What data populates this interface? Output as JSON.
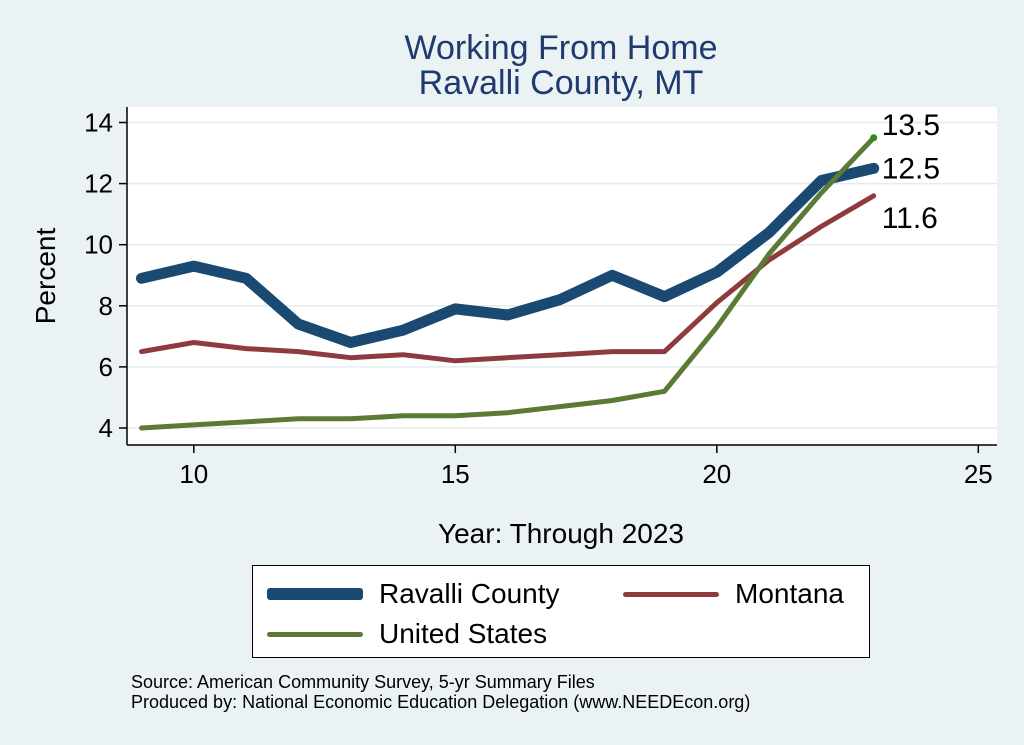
{
  "chart_data": {
    "type": "line",
    "title": "Working From Home",
    "subtitle": "Ravalli County, MT",
    "xlabel": "Year: Through 2023",
    "ylabel": "Percent",
    "xlim": [
      9,
      25
    ],
    "ylim": [
      3.8,
      14.5
    ],
    "x_ticks": [
      10,
      15,
      20,
      25
    ],
    "y_ticks": [
      4,
      6,
      8,
      10,
      12,
      14
    ],
    "grid": true,
    "x": [
      9,
      10,
      11,
      12,
      13,
      14,
      15,
      16,
      17,
      18,
      19,
      20,
      21,
      22,
      23
    ],
    "series": [
      {
        "name": "Ravalli County",
        "color": "#1a4a72",
        "values": [
          8.9,
          9.3,
          8.9,
          7.4,
          6.8,
          7.2,
          7.9,
          7.7,
          8.2,
          9.0,
          8.3,
          9.1,
          10.4,
          12.1,
          12.5
        ],
        "end_label": "12.5"
      },
      {
        "name": "Montana",
        "color": "#8f3a3f",
        "values": [
          6.5,
          6.8,
          6.6,
          6.5,
          6.3,
          6.4,
          6.2,
          6.3,
          6.4,
          6.5,
          6.5,
          8.1,
          9.5,
          10.6,
          11.6
        ],
        "end_label": "11.6"
      },
      {
        "name": "United States",
        "color": "#5a7a36",
        "values": [
          4.0,
          4.1,
          4.2,
          4.3,
          4.3,
          4.4,
          4.4,
          4.5,
          4.7,
          4.9,
          5.2,
          7.3,
          9.7,
          11.7,
          13.5
        ],
        "end_label": "13.5"
      }
    ],
    "legend": {
      "placement": "bottom",
      "entries": [
        "Ravalli County",
        "Montana",
        "United States"
      ]
    },
    "notes": [
      "Source: American Community Survey, 5-yr Summary Files",
      "Produced by: National Economic Education Delegation (www.NEEDEcon.org)"
    ]
  }
}
